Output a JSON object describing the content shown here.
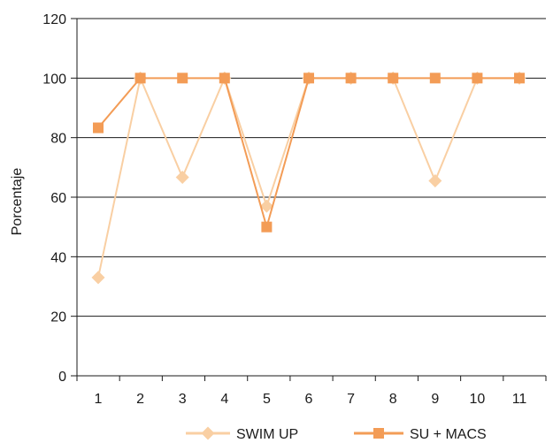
{
  "chart_data": {
    "type": "line",
    "title": "",
    "xlabel": "",
    "ylabel": "Porcentaje",
    "ylim": [
      0,
      120
    ],
    "yticks": [
      0,
      20,
      40,
      60,
      80,
      100,
      120
    ],
    "categories": [
      "1",
      "2",
      "3",
      "4",
      "5",
      "6",
      "7",
      "8",
      "9",
      "10",
      "11"
    ],
    "grid": "horizontal",
    "legend_position": "bottom",
    "series": [
      {
        "name": "SWIM UP",
        "marker": "diamond",
        "color": "#f9cfa3",
        "values": [
          33,
          100,
          66.7,
          100,
          57,
          100,
          100,
          100,
          65.5,
          100,
          100
        ]
      },
      {
        "name": "SU + MACS",
        "marker": "square",
        "color": "#f39c56",
        "values": [
          83.3,
          100,
          100,
          100,
          50,
          100,
          100,
          100,
          100,
          100,
          100
        ]
      }
    ]
  }
}
